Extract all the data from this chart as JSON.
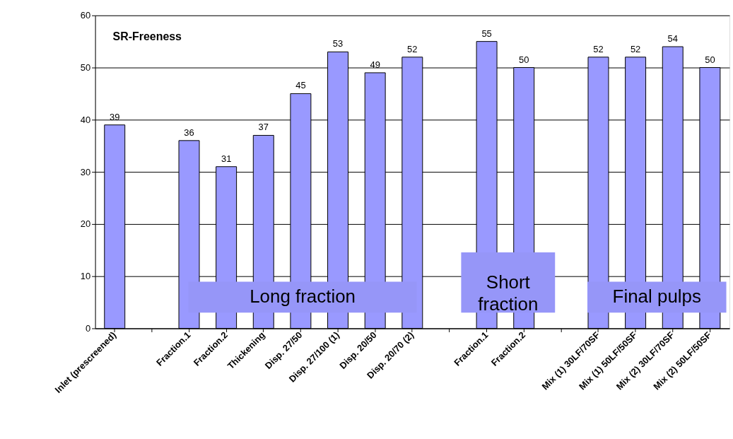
{
  "chart_data": {
    "type": "bar",
    "title": "SR-Freeness",
    "categories": [
      "Inlet (prescreened)",
      null,
      "Fraction.1",
      "Fraction.2",
      "Thickening",
      "Disp. 27/50",
      "Disp. 27/100 (1)",
      "Disp. 20/50",
      "Disp. 20/70 (2)",
      null,
      "Fraction.1",
      "Fraction.2",
      null,
      "Mix (1) 30LF/70SF",
      "Mix (1) 50LF/50SF",
      "Mix (2) 30LF/70SF",
      "Mix (2) 50LF/50SF"
    ],
    "values": [
      39,
      null,
      36,
      31,
      37,
      45,
      53,
      49,
      52,
      null,
      55,
      50,
      null,
      52,
      52,
      54,
      50
    ],
    "color": "#9999ff",
    "ylim": [
      0,
      60
    ],
    "yticks": [
      0,
      10,
      20,
      30,
      40,
      50,
      60
    ],
    "grid": "y",
    "data_labels": true,
    "legend": false,
    "annotations": [
      "Long fraction",
      "Short fraction",
      "Final pulps"
    ]
  }
}
